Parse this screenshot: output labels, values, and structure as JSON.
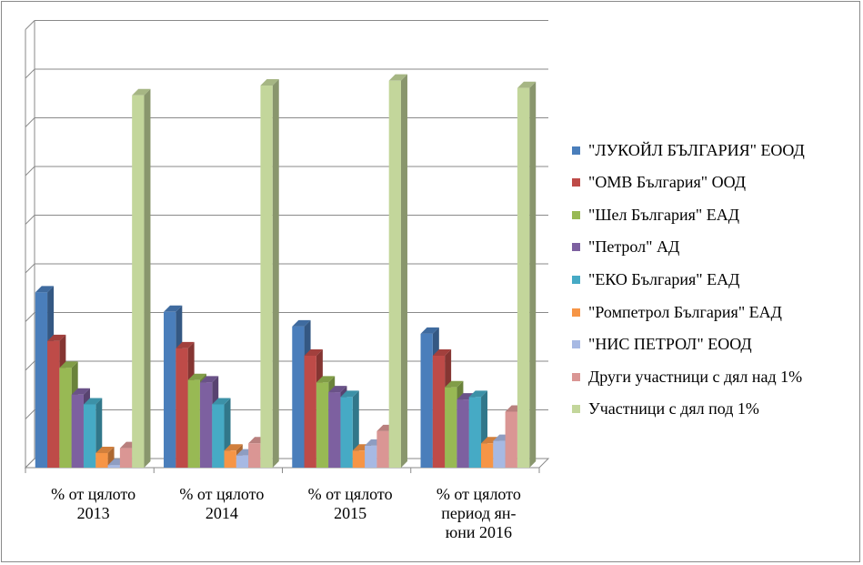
{
  "chart_data": {
    "type": "bar",
    "categories": [
      [
        "% от цялото",
        "2013"
      ],
      [
        "% от цялото",
        "2014"
      ],
      [
        "% от цялото",
        "2015"
      ],
      [
        "% от цялото",
        "период ян-",
        "юни 2016"
      ]
    ],
    "series": [
      {
        "name": "\"ЛУКОЙЛ БЪЛГАРИЯ\" ЕООД",
        "color": "#4a7ebb",
        "values": [
          3.6,
          3.2,
          2.9,
          2.75
        ]
      },
      {
        "name": "\"ОМВ България\" ООД",
        "color": "#be4b48",
        "values": [
          2.6,
          2.45,
          2.3,
          2.3
        ]
      },
      {
        "name": "\"Шел България\" ЕАД",
        "color": "#98b954",
        "values": [
          2.05,
          1.8,
          1.75,
          1.65
        ]
      },
      {
        "name": "\"Петрол\" АД",
        "color": "#7d60a0",
        "values": [
          1.5,
          1.75,
          1.55,
          1.4
        ]
      },
      {
        "name": "\"ЕКО България\" ЕАД",
        "color": "#46aac5",
        "values": [
          1.3,
          1.3,
          1.45,
          1.45
        ]
      },
      {
        "name": "\"Ромпетрол България\" ЕАД",
        "color": "#f69546",
        "values": [
          0.3,
          0.35,
          0.35,
          0.5
        ]
      },
      {
        "name": "\"НИС ПЕТРОЛ\" ЕООД",
        "color": "#a7b9e3",
        "values": [
          0.05,
          0.25,
          0.45,
          0.55
        ]
      },
      {
        "name": "Други участници с дял над 1%",
        "color": "#da9694",
        "values": [
          0.4,
          0.5,
          0.75,
          1.15
        ]
      },
      {
        "name": "Участници с дял под 1%",
        "color": "#c3d69b",
        "values": [
          7.65,
          7.85,
          7.95,
          7.8
        ]
      }
    ],
    "ylim": [
      0,
      9
    ],
    "grid": true,
    "legend_position": "right",
    "title": "",
    "xlabel": "",
    "ylabel": ""
  }
}
